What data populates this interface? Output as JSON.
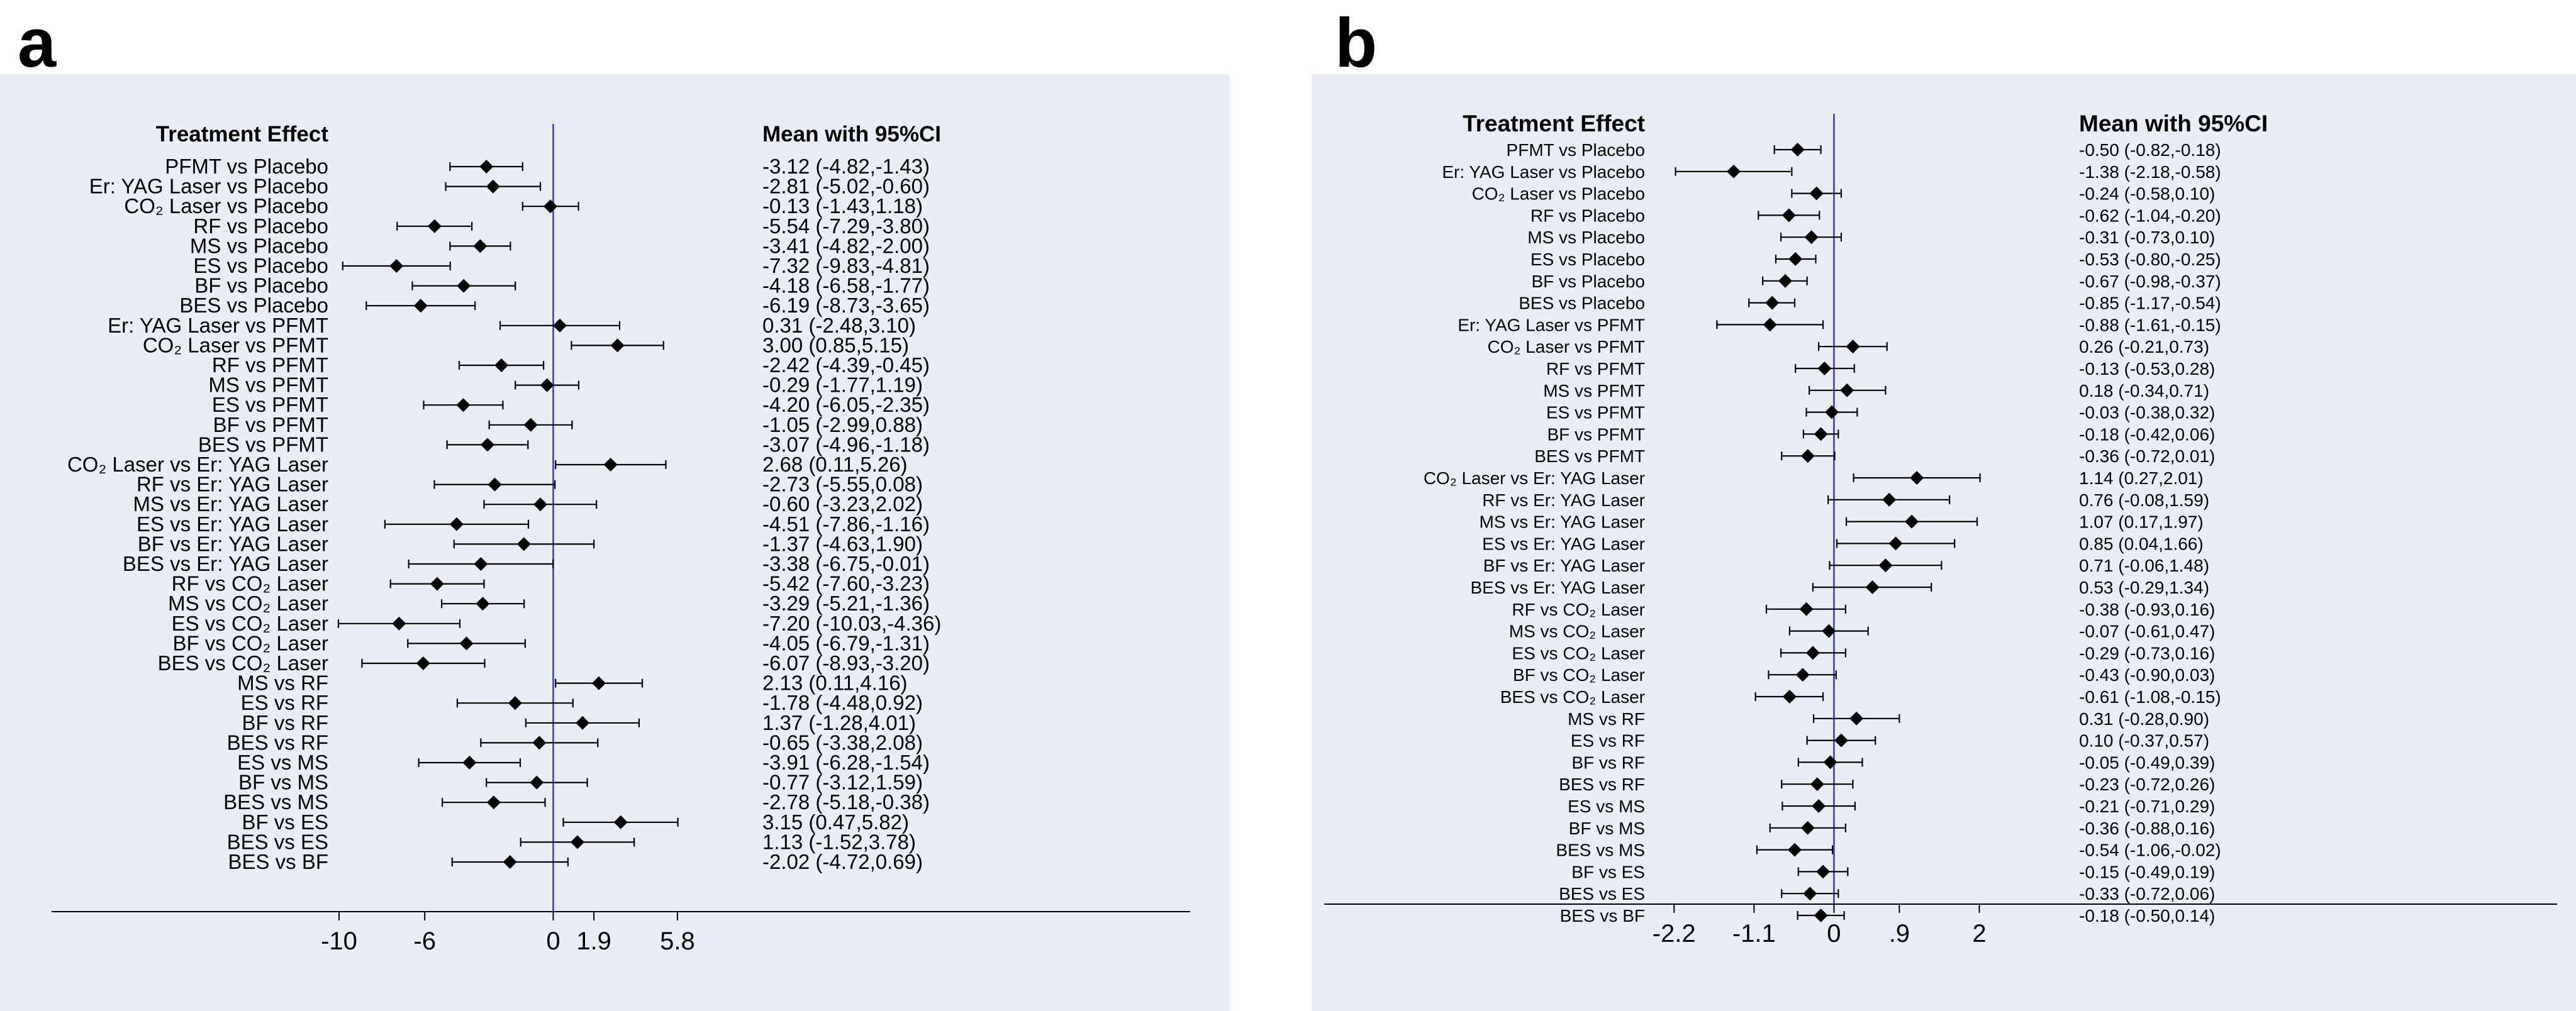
{
  "panels": {
    "a": {
      "letter": "a"
    },
    "b": {
      "letter": "b"
    }
  },
  "chart_data": [
    {
      "type": "forest",
      "panel": "a",
      "left_header": "Treatment Effect",
      "right_header": "Mean with 95%CI",
      "null_line": 0,
      "x_ticks": [
        -10,
        -6,
        0,
        1.9,
        5.8
      ],
      "x_tick_labels": [
        "-10",
        "-6",
        "0",
        "1.9",
        "5.8"
      ],
      "xlim": [
        -10.5,
        8.3
      ],
      "colors": {
        "null_line": "#3a3aa8",
        "ci_line": "#000000",
        "marker": "#000000"
      },
      "rows": [
        {
          "label": "PFMT vs Placebo",
          "mean": -3.12,
          "lower": -4.82,
          "upper": -1.43,
          "ci_text": "-3.12 (-4.82,-1.43)"
        },
        {
          "label": "Er: YAG Laser vs Placebo",
          "mean": -2.81,
          "lower": -5.02,
          "upper": -0.6,
          "ci_text": "-2.81 (-5.02,-0.60)"
        },
        {
          "label": "CO₂ Laser vs Placebo",
          "mean": -0.13,
          "lower": -1.43,
          "upper": 1.18,
          "ci_text": "-0.13 (-1.43,1.18)"
        },
        {
          "label": "RF vs Placebo",
          "mean": -5.54,
          "lower": -7.29,
          "upper": -3.8,
          "ci_text": "-5.54 (-7.29,-3.80)"
        },
        {
          "label": "MS vs Placebo",
          "mean": -3.41,
          "lower": -4.82,
          "upper": -2.0,
          "ci_text": "-3.41 (-4.82,-2.00)"
        },
        {
          "label": "ES vs Placebo",
          "mean": -7.32,
          "lower": -9.83,
          "upper": -4.81,
          "ci_text": "-7.32 (-9.83,-4.81)"
        },
        {
          "label": "BF vs Placebo",
          "mean": -4.18,
          "lower": -6.58,
          "upper": -1.77,
          "ci_text": "-4.18 (-6.58,-1.77)"
        },
        {
          "label": "BES vs Placebo",
          "mean": -6.19,
          "lower": -8.73,
          "upper": -3.65,
          "ci_text": "-6.19 (-8.73,-3.65)"
        },
        {
          "label": "Er: YAG Laser vs PFMT",
          "mean": 0.31,
          "lower": -2.48,
          "upper": 3.1,
          "ci_text": "0.31 (-2.48,3.10)"
        },
        {
          "label": "CO₂ Laser vs PFMT",
          "mean": 3.0,
          "lower": 0.85,
          "upper": 5.15,
          "ci_text": "3.00 (0.85,5.15)"
        },
        {
          "label": "RF vs PFMT",
          "mean": -2.42,
          "lower": -4.39,
          "upper": -0.45,
          "ci_text": "-2.42 (-4.39,-0.45)"
        },
        {
          "label": "MS vs PFMT",
          "mean": -0.29,
          "lower": -1.77,
          "upper": 1.19,
          "ci_text": "-0.29 (-1.77,1.19)"
        },
        {
          "label": "ES vs PFMT",
          "mean": -4.2,
          "lower": -6.05,
          "upper": -2.35,
          "ci_text": "-4.20 (-6.05,-2.35)"
        },
        {
          "label": "BF vs PFMT",
          "mean": -1.05,
          "lower": -2.99,
          "upper": 0.88,
          "ci_text": "-1.05 (-2.99,0.88)"
        },
        {
          "label": "BES vs PFMT",
          "mean": -3.07,
          "lower": -4.96,
          "upper": -1.18,
          "ci_text": "-3.07 (-4.96,-1.18)"
        },
        {
          "label": "CO₂ Laser vs Er: YAG Laser",
          "mean": 2.68,
          "lower": 0.11,
          "upper": 5.26,
          "ci_text": "2.68 (0.11,5.26)"
        },
        {
          "label": "RF vs Er: YAG Laser",
          "mean": -2.73,
          "lower": -5.55,
          "upper": 0.08,
          "ci_text": "-2.73 (-5.55,0.08)"
        },
        {
          "label": "MS vs Er: YAG Laser",
          "mean": -0.6,
          "lower": -3.23,
          "upper": 2.02,
          "ci_text": "-0.60 (-3.23,2.02)"
        },
        {
          "label": "ES vs Er: YAG Laser",
          "mean": -4.51,
          "lower": -7.86,
          "upper": -1.16,
          "ci_text": "-4.51 (-7.86,-1.16)"
        },
        {
          "label": "BF vs Er: YAG Laser",
          "mean": -1.37,
          "lower": -4.63,
          "upper": 1.9,
          "ci_text": "-1.37 (-4.63,1.90)"
        },
        {
          "label": "BES vs Er: YAG Laser",
          "mean": -3.38,
          "lower": -6.75,
          "upper": -0.01,
          "ci_text": "-3.38 (-6.75,-0.01)"
        },
        {
          "label": "RF vs CO₂ Laser",
          "mean": -5.42,
          "lower": -7.6,
          "upper": -3.23,
          "ci_text": "-5.42 (-7.60,-3.23)"
        },
        {
          "label": "MS vs CO₂ Laser",
          "mean": -3.29,
          "lower": -5.21,
          "upper": -1.36,
          "ci_text": "-3.29 (-5.21,-1.36)"
        },
        {
          "label": "ES vs CO₂ Laser",
          "mean": -7.2,
          "lower": -10.03,
          "upper": -4.36,
          "ci_text": "-7.20 (-10.03,-4.36)"
        },
        {
          "label": "BF vs CO₂ Laser",
          "mean": -4.05,
          "lower": -6.79,
          "upper": -1.31,
          "ci_text": "-4.05 (-6.79,-1.31)"
        },
        {
          "label": "BES vs CO₂ Laser",
          "mean": -6.07,
          "lower": -8.93,
          "upper": -3.2,
          "ci_text": "-6.07 (-8.93,-3.20)"
        },
        {
          "label": "MS vs RF",
          "mean": 2.13,
          "lower": 0.11,
          "upper": 4.16,
          "ci_text": "2.13 (0.11,4.16)"
        },
        {
          "label": "ES vs RF",
          "mean": -1.78,
          "lower": -4.48,
          "upper": 0.92,
          "ci_text": "-1.78 (-4.48,0.92)"
        },
        {
          "label": "BF vs RF",
          "mean": 1.37,
          "lower": -1.28,
          "upper": 4.01,
          "ci_text": "1.37 (-1.28,4.01)"
        },
        {
          "label": "BES vs RF",
          "mean": -0.65,
          "lower": -3.38,
          "upper": 2.08,
          "ci_text": "-0.65 (-3.38,2.08)"
        },
        {
          "label": "ES vs MS",
          "mean": -3.91,
          "lower": -6.28,
          "upper": -1.54,
          "ci_text": "-3.91 (-6.28,-1.54)"
        },
        {
          "label": "BF vs MS",
          "mean": -0.77,
          "lower": -3.12,
          "upper": 1.59,
          "ci_text": "-0.77 (-3.12,1.59)"
        },
        {
          "label": "BES vs MS",
          "mean": -2.78,
          "lower": -5.18,
          "upper": -0.38,
          "ci_text": "-2.78 (-5.18,-0.38)"
        },
        {
          "label": "BF vs ES",
          "mean": 3.15,
          "lower": 0.47,
          "upper": 5.82,
          "ci_text": "3.15 (0.47,5.82)"
        },
        {
          "label": "BES vs ES",
          "mean": 1.13,
          "lower": -1.52,
          "upper": 3.78,
          "ci_text": "1.13 (-1.52,3.78)"
        },
        {
          "label": "BES vs BF",
          "mean": -2.02,
          "lower": -4.72,
          "upper": 0.69,
          "ci_text": "-2.02 (-4.72,0.69)"
        }
      ]
    },
    {
      "type": "forest",
      "panel": "b",
      "left_header": "Treatment Effect",
      "right_header": "Mean with 95%CI",
      "null_line": 0,
      "x_ticks": [
        -2.2,
        -1.1,
        0,
        0.9,
        2
      ],
      "x_tick_labels": [
        "-2.2",
        "-1.1",
        "0",
        ".9",
        "2"
      ],
      "xlim": [
        -2.6,
        2.55
      ],
      "colors": {
        "null_line": "#3a3aa8",
        "ci_line": "#000000",
        "marker": "#000000"
      },
      "rows": [
        {
          "label": "PFMT vs Placebo",
          "mean": -0.5,
          "lower": -0.82,
          "upper": -0.18,
          "ci_text": "-0.50 (-0.82,-0.18)"
        },
        {
          "label": "Er: YAG Laser vs Placebo",
          "mean": -1.38,
          "lower": -2.18,
          "upper": -0.58,
          "ci_text": "-1.38 (-2.18,-0.58)"
        },
        {
          "label": "CO₂ Laser vs Placebo",
          "mean": -0.24,
          "lower": -0.58,
          "upper": 0.1,
          "ci_text": "-0.24 (-0.58,0.10)"
        },
        {
          "label": "RF vs Placebo",
          "mean": -0.62,
          "lower": -1.04,
          "upper": -0.2,
          "ci_text": "-0.62 (-1.04,-0.20)"
        },
        {
          "label": "MS vs Placebo",
          "mean": -0.31,
          "lower": -0.73,
          "upper": 0.1,
          "ci_text": "-0.31 (-0.73,0.10)"
        },
        {
          "label": "ES vs Placebo",
          "mean": -0.53,
          "lower": -0.8,
          "upper": -0.25,
          "ci_text": "-0.53 (-0.80,-0.25)"
        },
        {
          "label": "BF vs Placebo",
          "mean": -0.67,
          "lower": -0.98,
          "upper": -0.37,
          "ci_text": "-0.67 (-0.98,-0.37)"
        },
        {
          "label": "BES vs Placebo",
          "mean": -0.85,
          "lower": -1.17,
          "upper": -0.54,
          "ci_text": "-0.85 (-1.17,-0.54)"
        },
        {
          "label": "Er: YAG Laser vs PFMT",
          "mean": -0.88,
          "lower": -1.61,
          "upper": -0.15,
          "ci_text": "-0.88 (-1.61,-0.15)"
        },
        {
          "label": "CO₂ Laser vs PFMT",
          "mean": 0.26,
          "lower": -0.21,
          "upper": 0.73,
          "ci_text": "0.26 (-0.21,0.73)"
        },
        {
          "label": "RF vs PFMT",
          "mean": -0.13,
          "lower": -0.53,
          "upper": 0.28,
          "ci_text": "-0.13 (-0.53,0.28)"
        },
        {
          "label": "MS vs PFMT",
          "mean": 0.18,
          "lower": -0.34,
          "upper": 0.71,
          "ci_text": "0.18 (-0.34,0.71)"
        },
        {
          "label": "ES vs PFMT",
          "mean": -0.03,
          "lower": -0.38,
          "upper": 0.32,
          "ci_text": "-0.03 (-0.38,0.32)"
        },
        {
          "label": "BF vs PFMT",
          "mean": -0.18,
          "lower": -0.42,
          "upper": 0.06,
          "ci_text": "-0.18 (-0.42,0.06)"
        },
        {
          "label": "BES vs PFMT",
          "mean": -0.36,
          "lower": -0.72,
          "upper": 0.01,
          "ci_text": "-0.36 (-0.72,0.01)"
        },
        {
          "label": "CO₂ Laser vs Er: YAG Laser",
          "mean": 1.14,
          "lower": 0.27,
          "upper": 2.01,
          "ci_text": "1.14 (0.27,2.01)"
        },
        {
          "label": "RF vs Er: YAG Laser",
          "mean": 0.76,
          "lower": -0.08,
          "upper": 1.59,
          "ci_text": "0.76 (-0.08,1.59)"
        },
        {
          "label": "MS vs Er: YAG Laser",
          "mean": 1.07,
          "lower": 0.17,
          "upper": 1.97,
          "ci_text": "1.07 (0.17,1.97)"
        },
        {
          "label": "ES vs Er: YAG Laser",
          "mean": 0.85,
          "lower": 0.04,
          "upper": 1.66,
          "ci_text": "0.85 (0.04,1.66)"
        },
        {
          "label": "BF vs Er: YAG Laser",
          "mean": 0.71,
          "lower": -0.06,
          "upper": 1.48,
          "ci_text": "0.71 (-0.06,1.48)"
        },
        {
          "label": "BES vs Er: YAG Laser",
          "mean": 0.53,
          "lower": -0.29,
          "upper": 1.34,
          "ci_text": "0.53 (-0.29,1.34)"
        },
        {
          "label": "RF vs CO₂ Laser",
          "mean": -0.38,
          "lower": -0.93,
          "upper": 0.16,
          "ci_text": "-0.38 (-0.93,0.16)"
        },
        {
          "label": "MS vs CO₂ Laser",
          "mean": -0.07,
          "lower": -0.61,
          "upper": 0.47,
          "ci_text": "-0.07 (-0.61,0.47)"
        },
        {
          "label": "ES vs CO₂ Laser",
          "mean": -0.29,
          "lower": -0.73,
          "upper": 0.16,
          "ci_text": "-0.29 (-0.73,0.16)"
        },
        {
          "label": "BF vs CO₂ Laser",
          "mean": -0.43,
          "lower": -0.9,
          "upper": 0.03,
          "ci_text": "-0.43 (-0.90,0.03)"
        },
        {
          "label": "BES vs CO₂ Laser",
          "mean": -0.61,
          "lower": -1.08,
          "upper": -0.15,
          "ci_text": "-0.61 (-1.08,-0.15)"
        },
        {
          "label": "MS vs RF",
          "mean": 0.31,
          "lower": -0.28,
          "upper": 0.9,
          "ci_text": "0.31 (-0.28,0.90)"
        },
        {
          "label": "ES vs RF",
          "mean": 0.1,
          "lower": -0.37,
          "upper": 0.57,
          "ci_text": "0.10 (-0.37,0.57)"
        },
        {
          "label": "BF vs RF",
          "mean": -0.05,
          "lower": -0.49,
          "upper": 0.39,
          "ci_text": "-0.05 (-0.49,0.39)"
        },
        {
          "label": "BES vs RF",
          "mean": -0.23,
          "lower": -0.72,
          "upper": 0.26,
          "ci_text": "-0.23 (-0.72,0.26)"
        },
        {
          "label": "ES vs MS",
          "mean": -0.21,
          "lower": -0.71,
          "upper": 0.29,
          "ci_text": "-0.21 (-0.71,0.29)"
        },
        {
          "label": "BF vs MS",
          "mean": -0.36,
          "lower": -0.88,
          "upper": 0.16,
          "ci_text": "-0.36 (-0.88,0.16)"
        },
        {
          "label": "BES vs MS",
          "mean": -0.54,
          "lower": -1.06,
          "upper": -0.02,
          "ci_text": "-0.54 (-1.06,-0.02)"
        },
        {
          "label": "BF vs ES",
          "mean": -0.15,
          "lower": -0.49,
          "upper": 0.19,
          "ci_text": "-0.15 (-0.49,0.19)"
        },
        {
          "label": "BES vs ES",
          "mean": -0.33,
          "lower": -0.72,
          "upper": 0.06,
          "ci_text": "-0.33 (-0.72,0.06)"
        },
        {
          "label": "BES vs BF",
          "mean": -0.18,
          "lower": -0.5,
          "upper": 0.14,
          "ci_text": "-0.18 (-0.50,0.14)"
        }
      ]
    }
  ]
}
